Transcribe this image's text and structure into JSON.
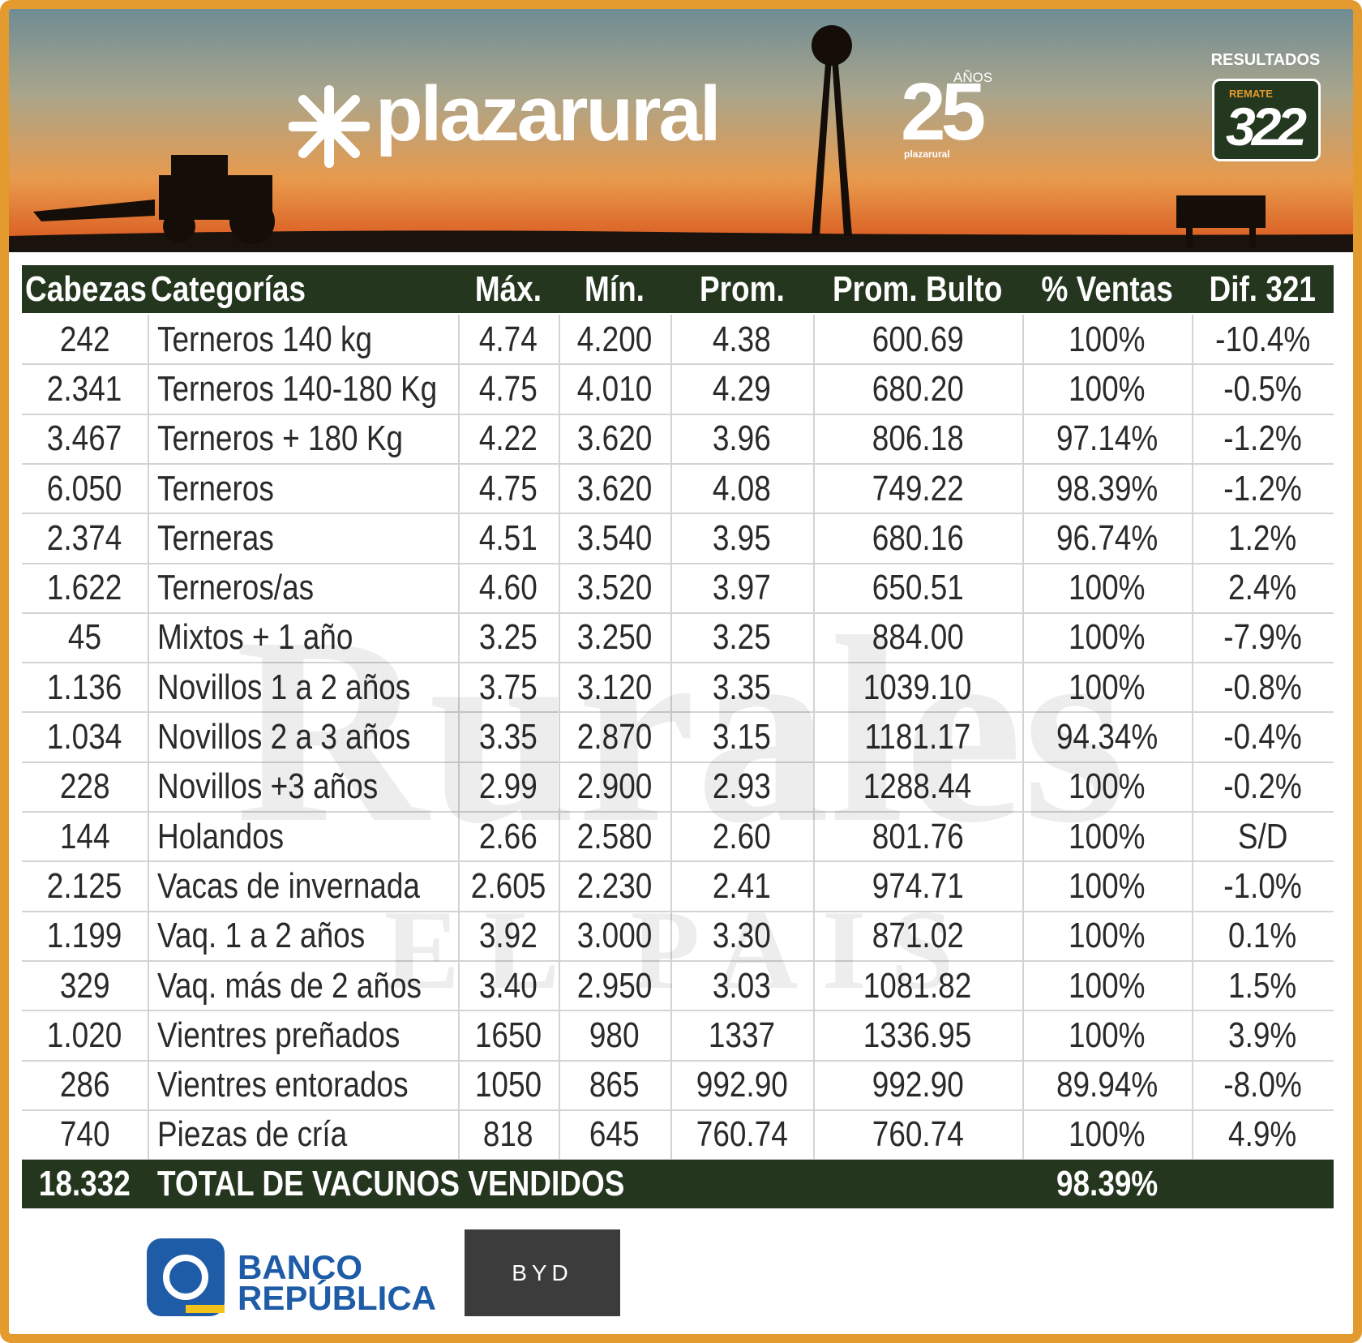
{
  "header": {
    "brand": "plazarural",
    "anniversary_number": "25",
    "anniversary_word": "AÑOS",
    "anniversary_brand": "plazarural",
    "results_label": "RESULTADOS",
    "badge_label": "REMATE",
    "badge_number": "322"
  },
  "watermark": {
    "line1": "Rurales",
    "line2": "EL PAIS"
  },
  "table": {
    "columns": [
      "Cabezas",
      "Categorías",
      "Máx.",
      "Mín.",
      "Prom.",
      "Prom. Bulto",
      "% Ventas",
      "Dif. 321"
    ],
    "rows": [
      [
        "242",
        "Terneros 140 kg",
        "4.74",
        "4.200",
        "4.38",
        "600.69",
        "100%",
        "-10.4%"
      ],
      [
        "2.341",
        "Terneros 140-180 Kg",
        "4.75",
        "4.010",
        "4.29",
        "680.20",
        "100%",
        "-0.5%"
      ],
      [
        "3.467",
        "Terneros + 180 Kg",
        "4.22",
        "3.620",
        "3.96",
        "806.18",
        "97.14%",
        "-1.2%"
      ],
      [
        "6.050",
        "Terneros",
        "4.75",
        "3.620",
        "4.08",
        "749.22",
        "98.39%",
        "-1.2%"
      ],
      [
        "2.374",
        "Terneras",
        "4.51",
        "3.540",
        "3.95",
        "680.16",
        "96.74%",
        "1.2%"
      ],
      [
        "1.622",
        "Terneros/as",
        "4.60",
        "3.520",
        "3.97",
        "650.51",
        "100%",
        "2.4%"
      ],
      [
        "45",
        "Mixtos + 1 año",
        "3.25",
        "3.250",
        "3.25",
        "884.00",
        "100%",
        "-7.9%"
      ],
      [
        "1.136",
        "Novillos 1 a 2 años",
        "3.75",
        "3.120",
        "3.35",
        "1039.10",
        "100%",
        "-0.8%"
      ],
      [
        "1.034",
        "Novillos 2 a 3 años",
        "3.35",
        "2.870",
        "3.15",
        "1181.17",
        "94.34%",
        "-0.4%"
      ],
      [
        "228",
        "Novillos +3 años",
        "2.99",
        "2.900",
        "2.93",
        "1288.44",
        "100%",
        "-0.2%"
      ],
      [
        "144",
        "Holandos",
        "2.66",
        "2.580",
        "2.60",
        "801.76",
        "100%",
        "S/D"
      ],
      [
        "2.125",
        "Vacas de invernada",
        "2.605",
        "2.230",
        "2.41",
        "974.71",
        "100%",
        "-1.0%"
      ],
      [
        "1.199",
        "Vaq. 1 a 2 años",
        "3.92",
        "3.000",
        "3.30",
        "871.02",
        "100%",
        "0.1%"
      ],
      [
        "329",
        "Vaq. más de 2 años",
        "3.40",
        "2.950",
        "3.03",
        "1081.82",
        "100%",
        "1.5%"
      ],
      [
        "1.020",
        "Vientres preñados",
        "1650",
        "980",
        "1337",
        "1336.95",
        "100%",
        "3.9%"
      ],
      [
        "286",
        "Vientres entorados",
        "1050",
        "865",
        "992.90",
        "992.90",
        "89.94%",
        "-8.0%"
      ],
      [
        "740",
        "Piezas de cría",
        "818",
        "645",
        "760.74",
        "760.74",
        "100%",
        "4.9%"
      ]
    ],
    "total": {
      "cabezas": "18.332",
      "label": "TOTAL DE VACUNOS VENDIDOS",
      "ventas": "98.39%"
    }
  },
  "sponsors": {
    "bank_line1": "BANCO",
    "bank_line2": "REPÚBLICA",
    "car": "BYD"
  }
}
